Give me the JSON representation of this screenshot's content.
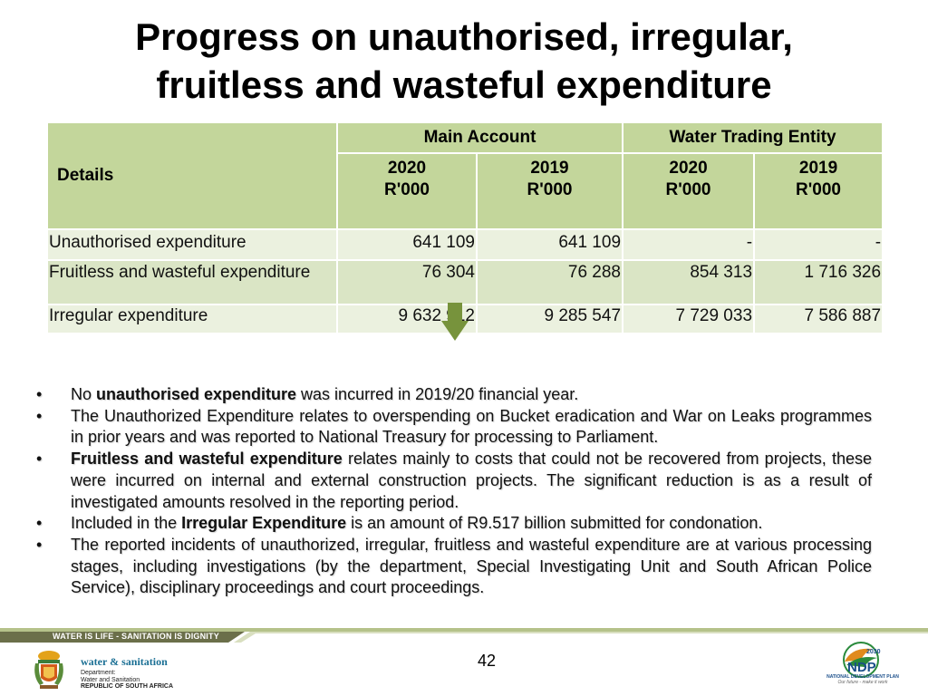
{
  "title": {
    "line1": "Progress on unauthorised, irregular,",
    "line2": "fruitless and wasteful expenditure"
  },
  "table": {
    "details_header": "Details",
    "groups": [
      "Main Account",
      "Water Trading Entity"
    ],
    "years": [
      {
        "year": "2020",
        "unit": "R'000"
      },
      {
        "year": "2019",
        "unit": "R'000"
      },
      {
        "year": "2020",
        "unit": "R'000"
      },
      {
        "year": "2019",
        "unit": "R'000"
      }
    ],
    "rows": [
      {
        "label": "Unauthorised expenditure",
        "values": [
          "641 109",
          "641 109",
          "-",
          "-"
        ]
      },
      {
        "label": "Fruitless and wasteful expenditure",
        "values": [
          "76 304",
          "76 288",
          "854 313",
          "1 716 326"
        ]
      },
      {
        "label": "Irregular expenditure",
        "values": [
          "9 632 912",
          "9 285 547",
          "7 729 033",
          "7 586 887"
        ]
      }
    ]
  },
  "bullets": [
    {
      "pre": "No ",
      "bold": "unauthorised expenditure",
      "post": " was incurred in 2019/20 financial year."
    },
    {
      "pre": "The Unauthorized Expenditure relates to overspending on Bucket eradication and War on Leaks programmes in prior years and was reported to National Treasury for processing to Parliament.",
      "bold": "",
      "post": ""
    },
    {
      "pre": "",
      "bold": "Fruitless and wasteful expenditure",
      "post": " relates mainly to costs that could not be recovered from projects, these were incurred on internal and external construction projects. The significant reduction is as a result of investigated amounts resolved in the reporting period."
    },
    {
      "pre": "Included in the ",
      "bold": "Irregular Expenditure",
      "post": " is an amount of R9.517 billion submitted for condonation."
    },
    {
      "pre": "The reported incidents of unauthorized, irregular, fruitless and wasteful expenditure are at various processing stages, including investigations (by the department, Special Investigating Unit and South African Police Service), disciplinary proceedings and court proceedings.",
      "bold": "",
      "post": ""
    }
  ],
  "bullet_symbol": "•",
  "footer": {
    "slogan": "WATER IS LIFE - SANITATION IS DIGNITY",
    "page_number": "42",
    "dept_title": "water & sanitation",
    "dept_lines": [
      "Department:",
      "Water and Sanitation",
      "REPUBLIC OF SOUTH AFRICA"
    ],
    "ndp_badge": "2030",
    "ndp_logo": "NDP",
    "ndp_name": "NATIONAL DEVELOPMENT PLAN",
    "ndp_tagline": "Our future - make it work"
  },
  "colors": {
    "header_green": "#c3d69b",
    "row_light": "#ebf1df",
    "row_mid": "#dae5c5",
    "arrow_green": "#77933c",
    "footer_bar": "#6b6f4a",
    "footer_bar_light": "#b5c28a"
  },
  "icons": {
    "down_arrow": "down-arrow-icon",
    "coat_of_arms": "coat-of-arms-icon",
    "ndp": "ndp-logo-icon"
  }
}
